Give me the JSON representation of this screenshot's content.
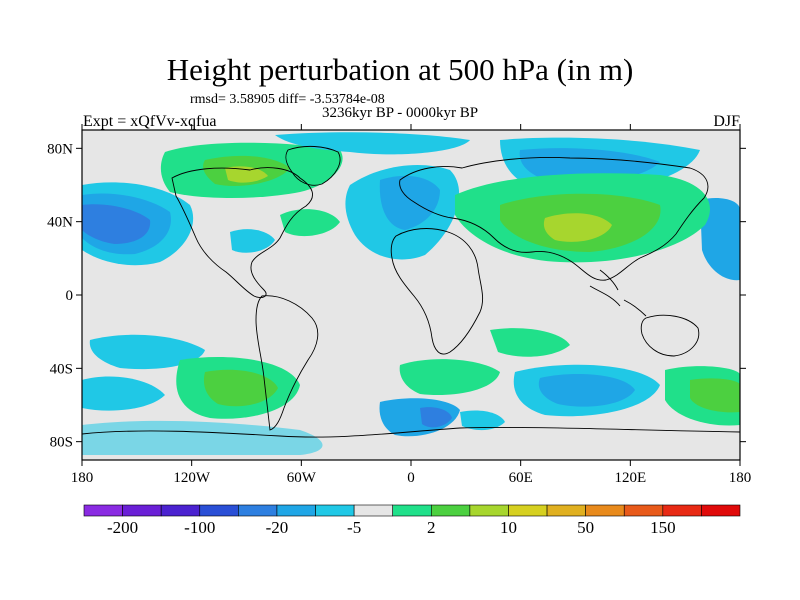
{
  "title": "Height perturbation at 500 hPa (in m)",
  "stats_text": "rmsd= 3.58905 diff= -3.53784e-08",
  "period": "3236kyr BP - 0000kyr BP",
  "experiment": "Expt = xQfVv-xqfua",
  "season": "DJF",
  "lat_ticks": [
    "80N",
    "40N",
    "0",
    "40S",
    "80S"
  ],
  "lon_ticks": [
    "180",
    "120W",
    "60W",
    "0",
    "60E",
    "120E",
    "180"
  ],
  "colorbar": {
    "labels": [
      "-200",
      "-100",
      "-20",
      "-5",
      "2",
      "10",
      "50",
      "150"
    ],
    "colors": [
      "#8a2be2",
      "#6a1fd6",
      "#4b22d0",
      "#2a4fd6",
      "#2e7fe0",
      "#1fa6e6",
      "#20c8e6",
      "#e6e6e6",
      "#20e08a",
      "#4cd040",
      "#a7d62e",
      "#d6d020",
      "#e0b020",
      "#e88a1c",
      "#e85a1a",
      "#e82a14",
      "#e00a0a"
    ]
  },
  "chart_data": {
    "type": "heatmap",
    "title": "Height perturbation at 500 hPa (in m)",
    "xlabel": "",
    "ylabel": "",
    "xlim": [
      -180,
      180
    ],
    "ylim": [
      -90,
      90
    ],
    "contour_levels": [
      -200,
      -150,
      -100,
      -50,
      -20,
      -10,
      -5,
      -2,
      2,
      5,
      10,
      20,
      50,
      100,
      150,
      200
    ],
    "features": [
      {
        "lon": 120,
        "lat": 35,
        "level": 20
      },
      {
        "lon": -95,
        "lat": 65,
        "level": 10
      },
      {
        "lon": -160,
        "lat": 40,
        "level": -20
      },
      {
        "lon": 95,
        "lat": -55,
        "level": -20
      },
      {
        "lon": -100,
        "lat": -57,
        "level": 10
      },
      {
        "lon": 10,
        "lat": -55,
        "level": 10
      },
      {
        "lon": 75,
        "lat": 68,
        "level": -5
      },
      {
        "lon": 170,
        "lat": -58,
        "level": 10
      }
    ]
  }
}
